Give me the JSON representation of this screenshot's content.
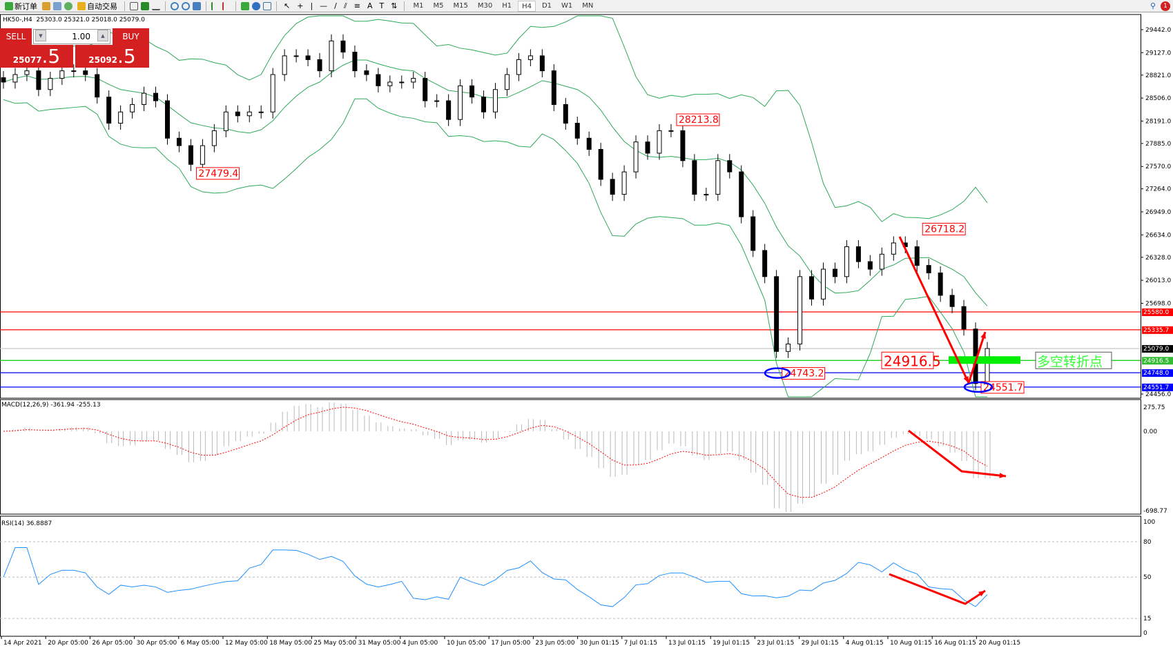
{
  "toolbar": {
    "new_order": "新订单",
    "auto_trading": "自动交易",
    "timeframes": [
      "M1",
      "M5",
      "M15",
      "M30",
      "H1",
      "H4",
      "D1",
      "W1",
      "MN"
    ],
    "active_timeframe": "H4",
    "notification_count": "1"
  },
  "chart_header": {
    "symbol": "HK50-,H4",
    "ohlc": "25303.0 25321.0 25018.0 25079.0"
  },
  "trade_panel": {
    "sell_label": "SELL",
    "buy_label": "BUY",
    "lot": "1.00",
    "sell_price_main": "25077",
    "sell_price_big": ".5",
    "buy_price_main": "25092",
    "buy_price_big": ".5",
    "sell_color": "#d42020"
  },
  "chart_data": {
    "type": "candlestick",
    "closes": [
      28725,
      28828,
      28879,
      28623,
      28776,
      28879,
      28879,
      28828,
      28520,
      28162,
      28316,
      28418,
      28572,
      28469,
      27957,
      27855,
      27599,
      27855,
      28060,
      28316,
      28264,
      28316,
      28316,
      28828,
      29084,
      29084,
      29032,
      28879,
      29288,
      29135,
      28879,
      28828,
      28674,
      28725,
      28725,
      28776,
      28469,
      28469,
      28213,
      28674,
      28520,
      28316,
      28623,
      28828,
      29032,
      29084,
      28879,
      28418,
      28162,
      27957,
      27804,
      27394,
      27189,
      27496,
      27906,
      27752,
      28060,
      28060,
      27650,
      27189,
      27189,
      27650,
      27496,
      26882,
      26421,
      26063,
      25039,
      25141,
      26063,
      25756,
      26165,
      26063,
      26472,
      26268,
      26165,
      26370,
      26524,
      26472,
      26216,
      26114,
      25807,
      25653,
      25346,
      24600,
      25079
    ],
    "price_axis": [
      "29442.0",
      "29127.0",
      "28821.0",
      "28506.0",
      "28191.0",
      "27885.0",
      "27570.0",
      "27264.0",
      "26949.0",
      "26634.0",
      "26328.0",
      "26013.0",
      "25698.0",
      "24456.0"
    ],
    "ylim": [
      24456,
      29442
    ],
    "time_axis": [
      "14 Apr 2021",
      "20 Apr 05:00",
      "26 Apr 05:00",
      "30 Apr 05:00",
      "6 May 05:00",
      "12 May 05:00",
      "18 May 05:00",
      "25 May 05:00",
      "31 May 05:00",
      "4 Jun 05:00",
      "10 Jun 05:00",
      "17 Jun 05:00",
      "23 Jun 05:00",
      "30 Jun 01:15",
      "7 Jul 01:15",
      "13 Jul 01:15",
      "19 Jul 01:15",
      "23 Jul 01:15",
      "29 Jul 01:15",
      "4 Aug 01:15",
      "10 Aug 01:15",
      "16 Aug 01:15",
      "20 Aug 01:15"
    ],
    "hlines": [
      {
        "price": 25580.0,
        "label": "25580.0",
        "color": "#ff0000"
      },
      {
        "price": 25335.7,
        "label": "25335.7",
        "color": "#ff0000"
      },
      {
        "price": 25079.0,
        "label": "25079.0",
        "color": "#c0c0c0",
        "tag": "#000000"
      },
      {
        "price": 24916.5,
        "label": "24916.5",
        "color": "#00cc00",
        "tag": "#33bb33"
      },
      {
        "price": 24748.0,
        "label": "24748.0",
        "color": "#0000ff"
      },
      {
        "price": 24551.7,
        "label": "24551.7",
        "color": "#0000ff"
      }
    ],
    "price_labels": [
      {
        "text": "27479.4",
        "index": 16,
        "price": 27479.4
      },
      {
        "text": "28213.8",
        "index": 57,
        "price": 28213.8
      },
      {
        "text": "26718.2",
        "index": 78,
        "price": 26718.2
      },
      {
        "text": "24743.2",
        "index": 66,
        "price": 24743.2
      },
      {
        "text": "24551.7",
        "index": 83,
        "price": 24551.7
      }
    ],
    "big_label": "24916.5",
    "annotation": "多空转折点",
    "bollinger_color": "#2ea85a",
    "macd": {
      "label": "MACD(12,26,9) -361.94 -255.13",
      "axis": [
        "275.75",
        "0.00",
        "-698.77"
      ]
    },
    "rsi": {
      "label": "RSI(14) 36.8887",
      "axis": [
        "100",
        "80",
        "50",
        "15",
        "0"
      ]
    }
  }
}
